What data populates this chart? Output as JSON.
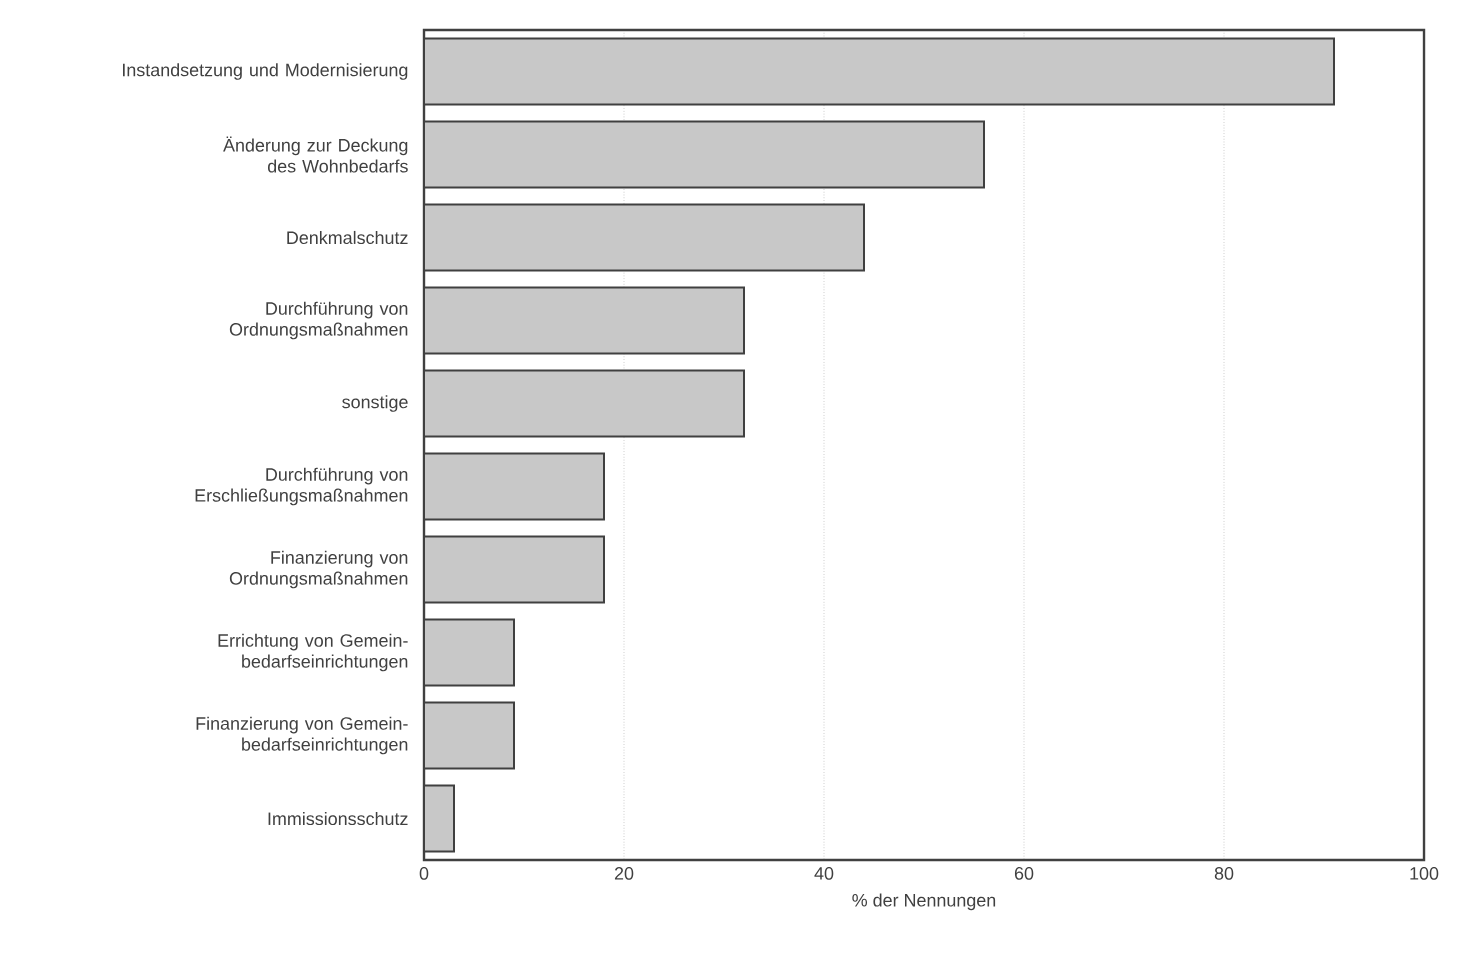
{
  "chart_data": {
    "type": "bar",
    "orientation": "horizontal",
    "xlabel": "% der Nennungen",
    "categories": [
      "Instandsetzung und Modernisierung",
      "Änderung zur Deckung des Wohnbedarfs",
      "Denkmalschutz",
      "Durchführung von Ordnungsmaßnahmen",
      "sonstige",
      "Durchführung von Erschließungsmaßnahmen",
      "Finanzierung von Ordnungsmaßnahmen",
      "Errichtung von Gemein-bedarfseinrichtungen",
      "Finanzierung von Gemein-bedarfseinrichtungen",
      "Immissionsschutz"
    ],
    "values": [
      91,
      56,
      44,
      32,
      32,
      18,
      18,
      9,
      9,
      3
    ],
    "color": "#c8c8c8",
    "xlim": [
      0,
      100
    ],
    "xticks": [
      0,
      20,
      40,
      60,
      80,
      100
    ],
    "grid": "x"
  }
}
